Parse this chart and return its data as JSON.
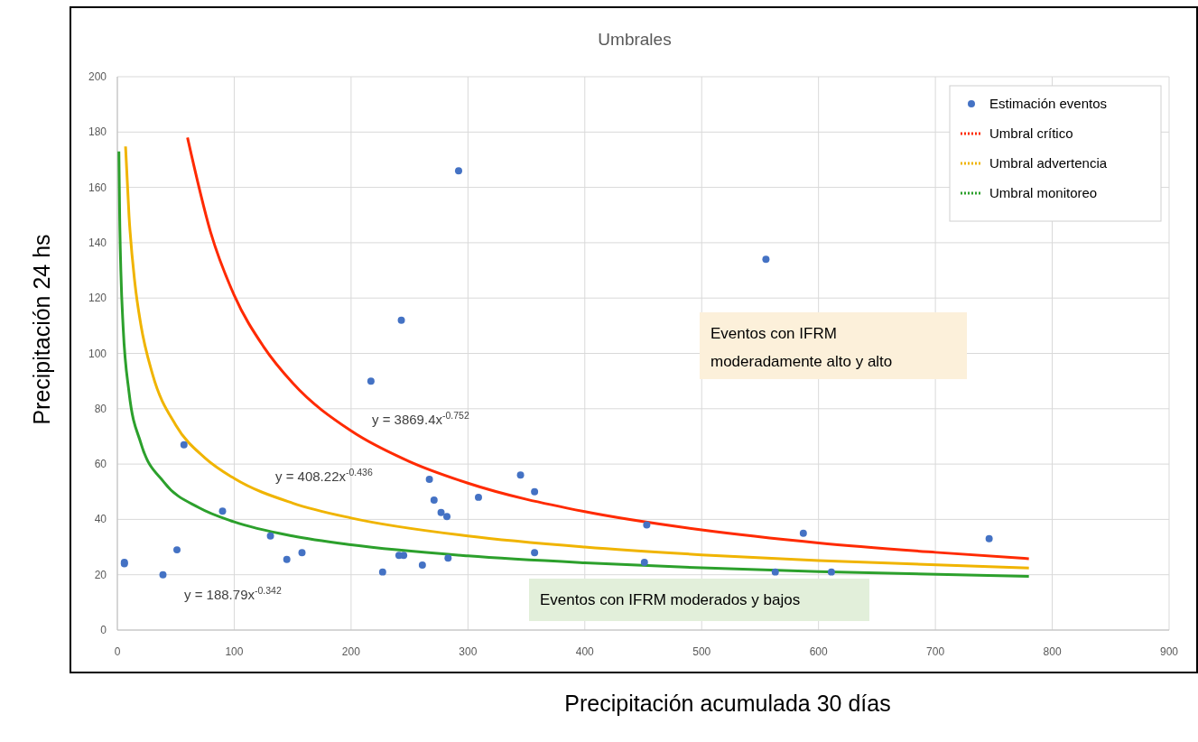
{
  "chart_data": {
    "type": "scatter",
    "title": "Umbrales",
    "xlabel": "Precipitación acumulada 30 días",
    "ylabel": "Precipitación 24 hs",
    "xlim": [
      0,
      900
    ],
    "xticks": [
      0,
      100,
      200,
      300,
      400,
      500,
      600,
      700,
      800,
      900
    ],
    "ylim": [
      0,
      200
    ],
    "yticks": [
      0,
      20,
      40,
      60,
      80,
      100,
      120,
      140,
      160,
      180,
      200
    ],
    "grid": true,
    "legend": "top right",
    "series": [
      {
        "name": "Estimación eventos",
        "marker": "circle",
        "color": "#4472c4",
        "x": [
          6,
          6,
          39,
          51,
          57,
          90,
          131,
          145,
          158,
          217,
          227,
          243,
          241,
          245,
          261,
          267,
          271,
          277,
          282,
          283,
          292,
          309,
          345,
          357,
          357,
          453,
          451,
          555,
          563,
          587,
          611,
          746
        ],
        "values": [
          24.5,
          24,
          20,
          29,
          67,
          43,
          34,
          25.5,
          28,
          90,
          21,
          112,
          27,
          27,
          23.5,
          54.5,
          47,
          42.5,
          41,
          26,
          166,
          48,
          56,
          50,
          28,
          38,
          24.5,
          134,
          21,
          35,
          21,
          33
        ]
      },
      {
        "name": "Umbral crítico",
        "type": "line",
        "marker": "none",
        "color": "#ff2a00",
        "x": [
          60,
          80,
          100,
          125,
          150,
          200,
          250,
          300,
          400,
          500,
          600,
          700,
          780
        ],
        "values": [
          178,
          143.5,
          121,
          102.5,
          89.3,
          72,
          60.9,
          53.1,
          42.8,
          36.2,
          31.5,
          28.1,
          25.8
        ]
      },
      {
        "name": "Umbral advertencia",
        "type": "line",
        "marker": "none",
        "color": "#f0b400",
        "x": [
          7,
          10,
          15,
          20,
          30,
          50,
          75,
          100,
          150,
          200,
          300,
          400,
          500,
          600,
          780
        ],
        "values": [
          174.8,
          149.6,
          125.4,
          110.6,
          92.6,
          74.1,
          62.2,
          54.8,
          45.9,
          40.5,
          34,
          30,
          27.2,
          25.1,
          22.4
        ]
      },
      {
        "name": "Umbral monitoreo",
        "type": "line",
        "marker": "none",
        "color": "#2ca02c",
        "x": [
          1.3,
          2,
          3,
          5,
          10,
          20,
          40,
          70,
          100,
          150,
          200,
          300,
          400,
          500,
          600,
          780
        ],
        "values": [
          173,
          149,
          129.6,
          109,
          85.9,
          67.7,
          53.4,
          44.2,
          39.1,
          34,
          30.8,
          26.8,
          24.3,
          22.5,
          21.1,
          19.4
        ]
      }
    ],
    "annotations": [
      "y = 3869.4x$^{-0.752}$",
      "y = 408.22x$^{-0.436}$",
      "y = 188.79x$^{-0.342}$",
      "Eventos con IFRM\nmoderadamente alto y alto",
      "Eventos con IFRM moderados y bajos"
    ]
  }
}
